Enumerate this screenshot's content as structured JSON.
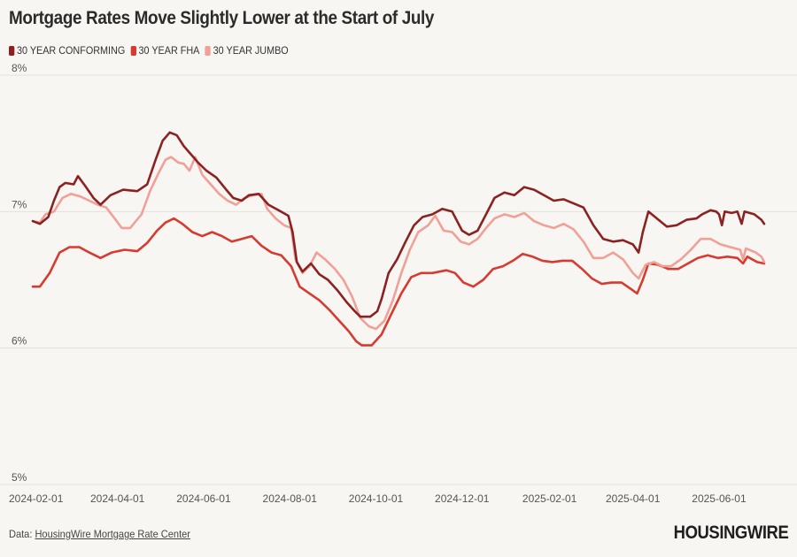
{
  "colors": {
    "background": "#f8f6f2",
    "conforming": "#8b2222",
    "fha": "#d63a30",
    "jumbo": "#f0a097",
    "grid": "#e4e1dc"
  },
  "chart_data": {
    "type": "line",
    "title": "Mortgage Rates Move Slightly Lower at the Start of July",
    "xlabel": "",
    "ylabel": "",
    "x_start": "2024-02-01",
    "x_end": "2025-07-03",
    "xlim": [
      "2024-02-01",
      "2025-07-03"
    ],
    "ylim": [
      5,
      8
    ],
    "y_ticks": [
      5,
      6,
      7,
      8
    ],
    "y_tick_labels": [
      "5%",
      "6%",
      "7%",
      "8%"
    ],
    "x_ticks": [
      "2024-02-01",
      "2024-04-01",
      "2024-06-01",
      "2024-08-01",
      "2024-10-01",
      "2024-12-01",
      "2025-02-01",
      "2025-04-01",
      "2025-06-01"
    ],
    "grid": true,
    "legend_position": "top-left",
    "series": [
      {
        "name": "30 YEAR CONFORMING",
        "color": "#8b2222",
        "points": [
          [
            "2024-02-01",
            6.93
          ],
          [
            "2024-02-06",
            6.91
          ],
          [
            "2024-02-12",
            6.96
          ],
          [
            "2024-02-16",
            7.08
          ],
          [
            "2024-02-20",
            7.18
          ],
          [
            "2024-02-24",
            7.21
          ],
          [
            "2024-03-01",
            7.2
          ],
          [
            "2024-03-04",
            7.26
          ],
          [
            "2024-03-09",
            7.19
          ],
          [
            "2024-03-15",
            7.1
          ],
          [
            "2024-03-20",
            7.05
          ],
          [
            "2024-03-27",
            7.12
          ],
          [
            "2024-04-05",
            7.16
          ],
          [
            "2024-04-15",
            7.15
          ],
          [
            "2024-04-22",
            7.2
          ],
          [
            "2024-04-28",
            7.38
          ],
          [
            "2024-05-03",
            7.52
          ],
          [
            "2024-05-08",
            7.58
          ],
          [
            "2024-05-13",
            7.56
          ],
          [
            "2024-05-18",
            7.48
          ],
          [
            "2024-05-23",
            7.42
          ],
          [
            "2024-05-28",
            7.36
          ],
          [
            "2024-06-03",
            7.3
          ],
          [
            "2024-06-10",
            7.25
          ],
          [
            "2024-06-17",
            7.16
          ],
          [
            "2024-06-22",
            7.1
          ],
          [
            "2024-06-28",
            7.08
          ],
          [
            "2024-07-03",
            7.12
          ],
          [
            "2024-07-10",
            7.13
          ],
          [
            "2024-07-17",
            7.05
          ],
          [
            "2024-07-24",
            7.01
          ],
          [
            "2024-07-31",
            6.97
          ],
          [
            "2024-08-03",
            6.85
          ],
          [
            "2024-08-06",
            6.63
          ],
          [
            "2024-08-10",
            6.56
          ],
          [
            "2024-08-16",
            6.62
          ],
          [
            "2024-08-22",
            6.54
          ],
          [
            "2024-08-28",
            6.5
          ],
          [
            "2024-09-04",
            6.42
          ],
          [
            "2024-09-10",
            6.34
          ],
          [
            "2024-09-16",
            6.27
          ],
          [
            "2024-09-20",
            6.23
          ],
          [
            "2024-09-27",
            6.23
          ],
          [
            "2024-10-02",
            6.27
          ],
          [
            "2024-10-05",
            6.36
          ],
          [
            "2024-10-10",
            6.55
          ],
          [
            "2024-10-16",
            6.65
          ],
          [
            "2024-10-22",
            6.78
          ],
          [
            "2024-10-28",
            6.9
          ],
          [
            "2024-11-03",
            6.96
          ],
          [
            "2024-11-10",
            6.98
          ],
          [
            "2024-11-17",
            7.02
          ],
          [
            "2024-11-24",
            7.0
          ],
          [
            "2024-12-01",
            6.86
          ],
          [
            "2024-12-06",
            6.83
          ],
          [
            "2024-12-12",
            6.86
          ],
          [
            "2024-12-18",
            6.98
          ],
          [
            "2024-12-24",
            7.1
          ],
          [
            "2024-12-31",
            7.14
          ],
          [
            "2025-01-07",
            7.12
          ],
          [
            "2025-01-14",
            7.18
          ],
          [
            "2025-01-21",
            7.16
          ],
          [
            "2025-01-28",
            7.12
          ],
          [
            "2025-02-04",
            7.08
          ],
          [
            "2025-02-11",
            7.09
          ],
          [
            "2025-02-18",
            7.06
          ],
          [
            "2025-02-25",
            7.03
          ],
          [
            "2025-03-04",
            6.9
          ],
          [
            "2025-03-11",
            6.8
          ],
          [
            "2025-03-18",
            6.78
          ],
          [
            "2025-03-25",
            6.79
          ],
          [
            "2025-04-01",
            6.76
          ],
          [
            "2025-04-05",
            6.7
          ],
          [
            "2025-04-08",
            6.85
          ],
          [
            "2025-04-12",
            7.0
          ],
          [
            "2025-04-18",
            6.95
          ],
          [
            "2025-04-25",
            6.89
          ],
          [
            "2025-05-02",
            6.9
          ],
          [
            "2025-05-09",
            6.94
          ],
          [
            "2025-05-16",
            6.95
          ],
          [
            "2025-05-20",
            6.98
          ],
          [
            "2025-05-26",
            7.01
          ],
          [
            "2025-05-30",
            7.0
          ],
          [
            "2025-06-01",
            6.98
          ],
          [
            "2025-06-03",
            6.9
          ],
          [
            "2025-06-05",
            7.0
          ],
          [
            "2025-06-10",
            6.99
          ],
          [
            "2025-06-14",
            7.0
          ],
          [
            "2025-06-17",
            6.91
          ],
          [
            "2025-06-19",
            7.0
          ],
          [
            "2025-06-26",
            6.98
          ],
          [
            "2025-07-01",
            6.94
          ],
          [
            "2025-07-03",
            6.91
          ]
        ]
      },
      {
        "name": "30 YEAR FHA",
        "color": "#d63a30",
        "points": [
          [
            "2024-02-01",
            6.45
          ],
          [
            "2024-02-06",
            6.45
          ],
          [
            "2024-02-13",
            6.55
          ],
          [
            "2024-02-20",
            6.7
          ],
          [
            "2024-02-27",
            6.74
          ],
          [
            "2024-03-05",
            6.74
          ],
          [
            "2024-03-12",
            6.7
          ],
          [
            "2024-03-20",
            6.66
          ],
          [
            "2024-03-28",
            6.7
          ],
          [
            "2024-04-06",
            6.72
          ],
          [
            "2024-04-15",
            6.71
          ],
          [
            "2024-04-22",
            6.77
          ],
          [
            "2024-04-29",
            6.86
          ],
          [
            "2024-05-05",
            6.92
          ],
          [
            "2024-05-11",
            6.95
          ],
          [
            "2024-05-17",
            6.91
          ],
          [
            "2024-05-24",
            6.85
          ],
          [
            "2024-05-31",
            6.82
          ],
          [
            "2024-06-07",
            6.85
          ],
          [
            "2024-06-14",
            6.82
          ],
          [
            "2024-06-21",
            6.78
          ],
          [
            "2024-06-28",
            6.8
          ],
          [
            "2024-07-05",
            6.82
          ],
          [
            "2024-07-12",
            6.75
          ],
          [
            "2024-07-19",
            6.7
          ],
          [
            "2024-07-26",
            6.68
          ],
          [
            "2024-08-02",
            6.6
          ],
          [
            "2024-08-08",
            6.45
          ],
          [
            "2024-08-15",
            6.4
          ],
          [
            "2024-08-22",
            6.35
          ],
          [
            "2024-08-29",
            6.28
          ],
          [
            "2024-09-05",
            6.2
          ],
          [
            "2024-09-12",
            6.12
          ],
          [
            "2024-09-17",
            6.05
          ],
          [
            "2024-09-21",
            6.02
          ],
          [
            "2024-09-28",
            6.02
          ],
          [
            "2024-10-05",
            6.1
          ],
          [
            "2024-10-12",
            6.25
          ],
          [
            "2024-10-19",
            6.4
          ],
          [
            "2024-10-26",
            6.52
          ],
          [
            "2024-11-02",
            6.55
          ],
          [
            "2024-11-10",
            6.55
          ],
          [
            "2024-11-20",
            6.57
          ],
          [
            "2024-11-26",
            6.55
          ],
          [
            "2024-12-02",
            6.48
          ],
          [
            "2024-12-09",
            6.45
          ],
          [
            "2024-12-16",
            6.5
          ],
          [
            "2024-12-23",
            6.58
          ],
          [
            "2024-12-30",
            6.6
          ],
          [
            "2025-01-06",
            6.64
          ],
          [
            "2025-01-13",
            6.69
          ],
          [
            "2025-01-20",
            6.67
          ],
          [
            "2025-01-27",
            6.64
          ],
          [
            "2025-02-03",
            6.63
          ],
          [
            "2025-02-10",
            6.64
          ],
          [
            "2025-02-17",
            6.64
          ],
          [
            "2025-02-24",
            6.58
          ],
          [
            "2025-03-03",
            6.51
          ],
          [
            "2025-03-10",
            6.47
          ],
          [
            "2025-03-17",
            6.48
          ],
          [
            "2025-03-24",
            6.48
          ],
          [
            "2025-03-31",
            6.43
          ],
          [
            "2025-04-04",
            6.4
          ],
          [
            "2025-04-08",
            6.5
          ],
          [
            "2025-04-12",
            6.62
          ],
          [
            "2025-04-19",
            6.61
          ],
          [
            "2025-04-26",
            6.58
          ],
          [
            "2025-05-03",
            6.58
          ],
          [
            "2025-05-10",
            6.62
          ],
          [
            "2025-05-17",
            6.66
          ],
          [
            "2025-05-24",
            6.68
          ],
          [
            "2025-05-31",
            6.66
          ],
          [
            "2025-06-07",
            6.67
          ],
          [
            "2025-06-14",
            6.66
          ],
          [
            "2025-06-18",
            6.62
          ],
          [
            "2025-06-21",
            6.67
          ],
          [
            "2025-06-28",
            6.63
          ],
          [
            "2025-07-03",
            6.62
          ]
        ]
      },
      {
        "name": "30 YEAR JUMBO",
        "color": "#f0a097",
        "points": [
          [
            "2024-02-01",
            6.93
          ],
          [
            "2024-02-06",
            6.92
          ],
          [
            "2024-02-10",
            6.98
          ],
          [
            "2024-02-16",
            7.0
          ],
          [
            "2024-02-22",
            7.1
          ],
          [
            "2024-02-28",
            7.13
          ],
          [
            "2024-03-06",
            7.11
          ],
          [
            "2024-03-12",
            7.08
          ],
          [
            "2024-03-18",
            7.05
          ],
          [
            "2024-03-24",
            7.03
          ],
          [
            "2024-03-30",
            6.95
          ],
          [
            "2024-04-04",
            6.88
          ],
          [
            "2024-04-10",
            6.88
          ],
          [
            "2024-04-18",
            6.98
          ],
          [
            "2024-04-24",
            7.15
          ],
          [
            "2024-04-30",
            7.28
          ],
          [
            "2024-05-05",
            7.38
          ],
          [
            "2024-05-09",
            7.4
          ],
          [
            "2024-05-14",
            7.36
          ],
          [
            "2024-05-18",
            7.35
          ],
          [
            "2024-05-22",
            7.3
          ],
          [
            "2024-05-26",
            7.4
          ],
          [
            "2024-05-31",
            7.27
          ],
          [
            "2024-06-06",
            7.2
          ],
          [
            "2024-06-12",
            7.13
          ],
          [
            "2024-06-18",
            7.08
          ],
          [
            "2024-06-24",
            7.05
          ],
          [
            "2024-06-30",
            7.1
          ],
          [
            "2024-07-06",
            7.12
          ],
          [
            "2024-07-12",
            7.13
          ],
          [
            "2024-07-16",
            7.02
          ],
          [
            "2024-07-22",
            6.95
          ],
          [
            "2024-07-28",
            6.9
          ],
          [
            "2024-08-02",
            6.88
          ],
          [
            "2024-08-05",
            6.65
          ],
          [
            "2024-08-10",
            6.55
          ],
          [
            "2024-08-15",
            6.6
          ],
          [
            "2024-08-20",
            6.7
          ],
          [
            "2024-08-26",
            6.65
          ],
          [
            "2024-09-02",
            6.58
          ],
          [
            "2024-09-08",
            6.5
          ],
          [
            "2024-09-14",
            6.38
          ],
          [
            "2024-09-20",
            6.22
          ],
          [
            "2024-09-26",
            6.16
          ],
          [
            "2024-10-01",
            6.14
          ],
          [
            "2024-10-07",
            6.2
          ],
          [
            "2024-10-13",
            6.35
          ],
          [
            "2024-10-19",
            6.55
          ],
          [
            "2024-10-25",
            6.72
          ],
          [
            "2024-10-31",
            6.85
          ],
          [
            "2024-11-07",
            6.9
          ],
          [
            "2024-11-12",
            6.97
          ],
          [
            "2024-11-18",
            6.86
          ],
          [
            "2024-11-24",
            6.85
          ],
          [
            "2024-11-30",
            6.78
          ],
          [
            "2024-12-06",
            6.76
          ],
          [
            "2024-12-12",
            6.8
          ],
          [
            "2024-12-18",
            6.88
          ],
          [
            "2024-12-24",
            6.95
          ],
          [
            "2024-12-31",
            6.98
          ],
          [
            "2025-01-07",
            6.96
          ],
          [
            "2025-01-14",
            6.99
          ],
          [
            "2025-01-21",
            6.93
          ],
          [
            "2025-01-28",
            6.9
          ],
          [
            "2025-02-04",
            6.88
          ],
          [
            "2025-02-11",
            6.91
          ],
          [
            "2025-02-18",
            6.87
          ],
          [
            "2025-02-25",
            6.78
          ],
          [
            "2025-03-04",
            6.66
          ],
          [
            "2025-03-11",
            6.66
          ],
          [
            "2025-03-18",
            6.7
          ],
          [
            "2025-03-25",
            6.65
          ],
          [
            "2025-04-01",
            6.55
          ],
          [
            "2025-04-05",
            6.51
          ],
          [
            "2025-04-10",
            6.61
          ],
          [
            "2025-04-16",
            6.63
          ],
          [
            "2025-04-22",
            6.6
          ],
          [
            "2025-04-28",
            6.6
          ],
          [
            "2025-05-05",
            6.65
          ],
          [
            "2025-05-12",
            6.72
          ],
          [
            "2025-05-19",
            6.8
          ],
          [
            "2025-05-26",
            6.8
          ],
          [
            "2025-06-02",
            6.76
          ],
          [
            "2025-06-09",
            6.74
          ],
          [
            "2025-06-16",
            6.72
          ],
          [
            "2025-06-18",
            6.65
          ],
          [
            "2025-06-20",
            6.73
          ],
          [
            "2025-06-27",
            6.7
          ],
          [
            "2025-07-01",
            6.67
          ],
          [
            "2025-07-03",
            6.63
          ]
        ]
      }
    ]
  },
  "footer": {
    "source_prefix": "Data: ",
    "source_link": "HousingWire Mortgage Rate Center",
    "logo": "HOUSINGWIRE"
  }
}
